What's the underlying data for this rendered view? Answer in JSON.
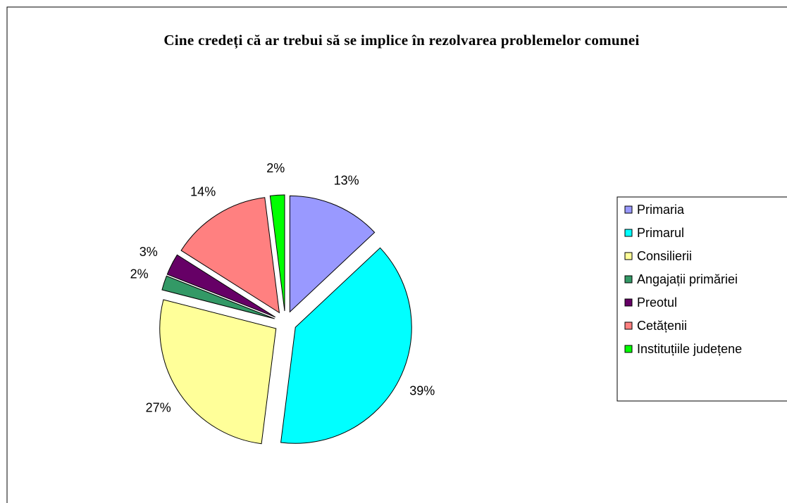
{
  "chart_data": {
    "type": "pie",
    "title": "Cine credeți că ar trebui să se implice în rezolvarea problemelor comunei",
    "categories": [
      "Primaria",
      "Primarul",
      "Consilierii",
      "Angajații primăriei",
      "Preotul",
      "Cetățenii",
      "Instituțiile județene"
    ],
    "values": [
      13,
      39,
      27,
      2,
      3,
      14,
      2
    ],
    "value_labels": [
      "13%",
      "39%",
      "27%",
      "2%",
      "3%",
      "14%",
      "2%"
    ],
    "colors": [
      "#9999ff",
      "#00ffff",
      "#ffff99",
      "#339966",
      "#660066",
      "#ff8080",
      "#00ff00"
    ],
    "legend": "right"
  }
}
